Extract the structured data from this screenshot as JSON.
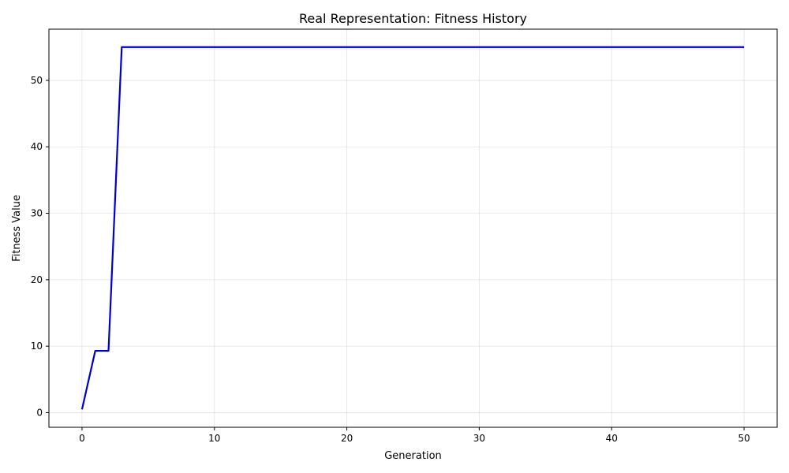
{
  "chart_data": {
    "type": "line",
    "title": "Real Representation: Fitness History",
    "xlabel": "Generation",
    "ylabel": "Fitness Value",
    "xlim": [
      -2.5,
      52.5
    ],
    "ylim": [
      -2.2,
      57.7
    ],
    "xticks": [
      0,
      10,
      20,
      30,
      40,
      50
    ],
    "yticks": [
      0,
      10,
      20,
      30,
      40,
      50
    ],
    "grid": true,
    "line_color": "#0000cc",
    "series": [
      {
        "x": [
          0,
          1,
          2,
          3,
          4,
          5,
          6,
          7,
          8,
          9,
          10,
          11,
          12,
          13,
          14,
          15,
          16,
          17,
          18,
          19,
          20,
          21,
          22,
          23,
          24,
          25,
          26,
          27,
          28,
          29,
          30,
          31,
          32,
          33,
          34,
          35,
          36,
          37,
          38,
          39,
          40,
          41,
          42,
          43,
          44,
          45,
          46,
          47,
          48,
          49,
          50
        ],
        "y": [
          0.5,
          9.3,
          9.3,
          55.0,
          55.0,
          55.0,
          55.0,
          55.0,
          55.0,
          55.0,
          55.0,
          55.0,
          55.0,
          55.0,
          55.0,
          55.0,
          55.0,
          55.0,
          55.0,
          55.0,
          55.0,
          55.0,
          55.0,
          55.0,
          55.0,
          55.0,
          55.0,
          55.0,
          55.0,
          55.0,
          55.0,
          55.0,
          55.0,
          55.0,
          55.0,
          55.0,
          55.0,
          55.0,
          55.0,
          55.0,
          55.0,
          55.0,
          55.0,
          55.0,
          55.0,
          55.0,
          55.0,
          55.0,
          55.0,
          55.0,
          55.0
        ]
      }
    ]
  }
}
